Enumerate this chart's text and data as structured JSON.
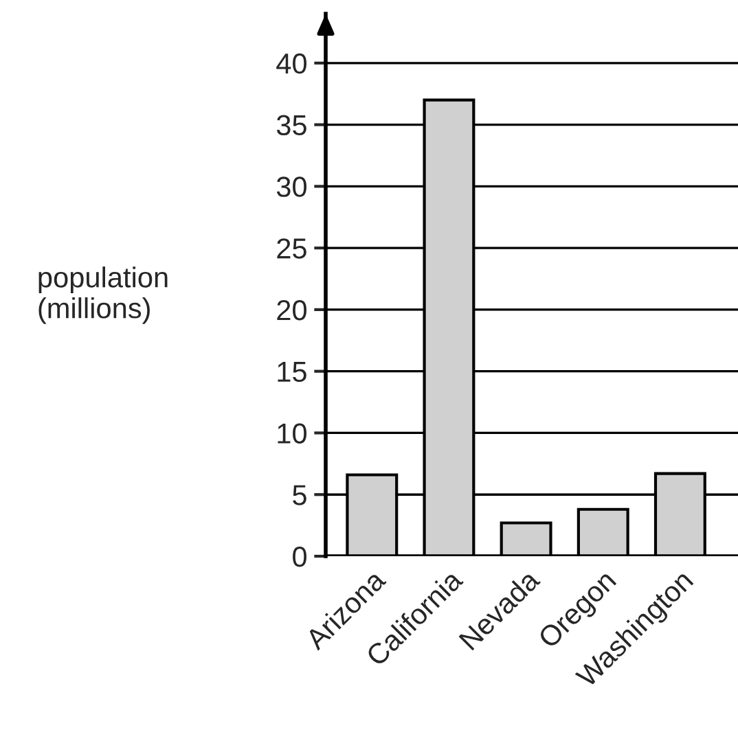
{
  "chart_data": {
    "type": "bar",
    "ylabel": "population\n(millions)",
    "categories": [
      "Arizona",
      "California",
      "Nevada",
      "Oregon",
      "Washington"
    ],
    "values": [
      6.6,
      37.0,
      2.7,
      3.8,
      6.7
    ],
    "color": "#d0d0d0",
    "ylim": [
      0,
      44
    ],
    "yticks": [
      0,
      5,
      10,
      15,
      20,
      25,
      30,
      35,
      40
    ],
    "grid": "y"
  }
}
